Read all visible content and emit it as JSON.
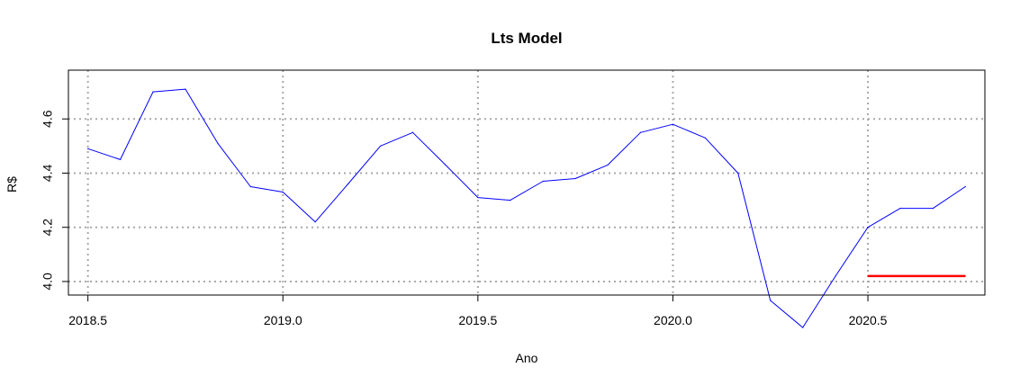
{
  "chart_data": {
    "type": "line",
    "title": "Lts Model",
    "xlabel": "Ano",
    "ylabel": "R$",
    "xlim": [
      2018.45,
      2020.8
    ],
    "ylim": [
      3.95,
      4.78
    ],
    "x_ticks": [
      2018.5,
      2019.0,
      2019.5,
      2020.0,
      2020.5
    ],
    "x_tick_labels": [
      "2018.5",
      "2019.0",
      "2019.5",
      "2020.0",
      "2020.5"
    ],
    "y_ticks": [
      4.0,
      4.2,
      4.4,
      4.6
    ],
    "y_tick_labels": [
      "4.0",
      "4.2",
      "4.4",
      "4.6"
    ],
    "grid": true,
    "series": [
      {
        "color": "#0000ff",
        "x": [
          2018.5,
          2018.583,
          2018.667,
          2018.75,
          2018.833,
          2018.917,
          2019.0,
          2019.083,
          2019.167,
          2019.25,
          2019.333,
          2019.417,
          2019.5,
          2019.583,
          2019.667,
          2019.75,
          2019.833,
          2019.917,
          2020.0,
          2020.083,
          2020.167,
          2020.25,
          2020.333,
          2020.417,
          2020.5,
          2020.583,
          2020.667,
          2020.75
        ],
        "values": [
          4.49,
          4.45,
          4.7,
          4.71,
          4.51,
          4.35,
          4.33,
          4.22,
          4.36,
          4.5,
          4.55,
          4.43,
          4.31,
          4.3,
          4.37,
          4.38,
          4.43,
          4.55,
          4.58,
          4.53,
          4.4,
          3.93,
          3.83,
          4.02,
          4.2,
          4.27,
          4.27,
          4.35
        ]
      },
      {
        "color": "#ff0000",
        "x": [
          2020.5,
          2020.75
        ],
        "values": [
          4.02,
          4.02
        ]
      }
    ]
  }
}
